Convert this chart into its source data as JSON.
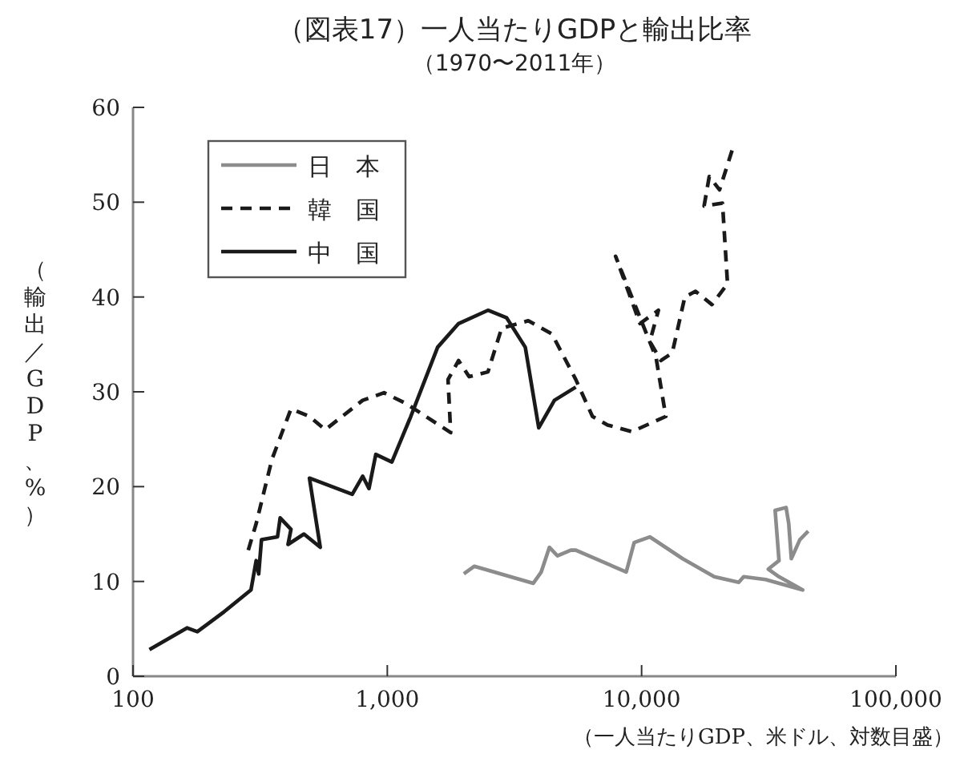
{
  "chart_data": {
    "type": "line",
    "title": "（図表17）一人当たりGDPと輸出比率",
    "subtitle": "（1970〜2011年）",
    "xlabel": "（一人当たりGDP、米ドル、対数目盛）",
    "ylabel": "（輸出／GDP、%）",
    "log": "x",
    "xlim": [
      100,
      100000
    ],
    "xticks": [
      100,
      {
        "value": 1000,
        "label": "1,000"
      },
      {
        "value": 10000,
        "label": "10,000"
      },
      {
        "value": 100000,
        "label": "100,000"
      }
    ],
    "ylim": [
      0,
      60
    ],
    "yticks": [
      0,
      10,
      20,
      30,
      40,
      50,
      60
    ],
    "grid": false,
    "legend": "top left",
    "series": [
      {
        "name": "日　本",
        "color": "#8c8c8c",
        "line_style": "solid",
        "x": [
          2000,
          2200,
          3750,
          4030,
          4340,
          4670,
          5270,
          5510,
          8700,
          9350,
          10770,
          14500,
          19300,
          24100,
          25200,
          30700,
          43000,
          34700,
          31500,
          34700,
          33500,
          37000,
          37900,
          38800,
          41900,
          45200
        ],
        "values": [
          10.8,
          11.6,
          9.8,
          11,
          13.6,
          12.7,
          13.3,
          13.3,
          11,
          14.1,
          14.7,
          12.4,
          10.5,
          9.9,
          10.5,
          10.2,
          9.1,
          10.5,
          11.3,
          12.2,
          17.5,
          17.8,
          16.1,
          12.4,
          14.4,
          15.3
        ]
      },
      {
        "name": "韓　国",
        "color": "#1a1a1a",
        "line_style": "dashed",
        "x": [
          284,
          305,
          352,
          418,
          494,
          570,
          800,
          971,
          1178,
          1775,
          1733,
          1907,
          2097,
          2488,
          2814,
          3582,
          4440,
          5510,
          6410,
          7350,
          9160,
          12450,
          11400,
          7900,
          9850,
          11650,
          10770,
          11920,
          13200,
          14790,
          16300,
          18900,
          21770,
          20800,
          17610,
          18450,
          20250,
          22900
        ],
        "values": [
          13.3,
          16.1,
          22.9,
          28.2,
          27.4,
          26,
          29.1,
          29.9,
          28.8,
          25.7,
          31.3,
          33.3,
          31.6,
          32.1,
          36.7,
          37.5,
          36.1,
          31.3,
          27.4,
          26.5,
          25.8,
          27.4,
          33.6,
          44.3,
          37.2,
          38.6,
          35.3,
          33.3,
          34.1,
          40,
          40.6,
          39.2,
          41.4,
          49.9,
          49.6,
          52.7,
          51.3,
          55.8
        ]
      },
      {
        "name": "中　国",
        "color": "#1a1a1a",
        "line_style": "solid",
        "x": [
          116,
          163,
          179,
          228,
          291,
          305,
          312,
          320,
          370,
          379,
          418,
          407,
          470,
          545,
          494,
          728,
          800,
          847,
          901,
          1042,
          1237,
          1577,
          1907,
          2488,
          2947,
          3488,
          3940,
          4540,
          5510
        ],
        "values": [
          2.8,
          5.1,
          4.7,
          6.8,
          9.1,
          12.2,
          10.8,
          14.4,
          14.7,
          16.7,
          15.5,
          13.9,
          15,
          13.6,
          20.9,
          19.2,
          21.1,
          19.8,
          23.4,
          22.6,
          27.4,
          34.7,
          37.2,
          38.6,
          37.8,
          34.7,
          26.2,
          29.1,
          30.5
        ]
      }
    ]
  }
}
